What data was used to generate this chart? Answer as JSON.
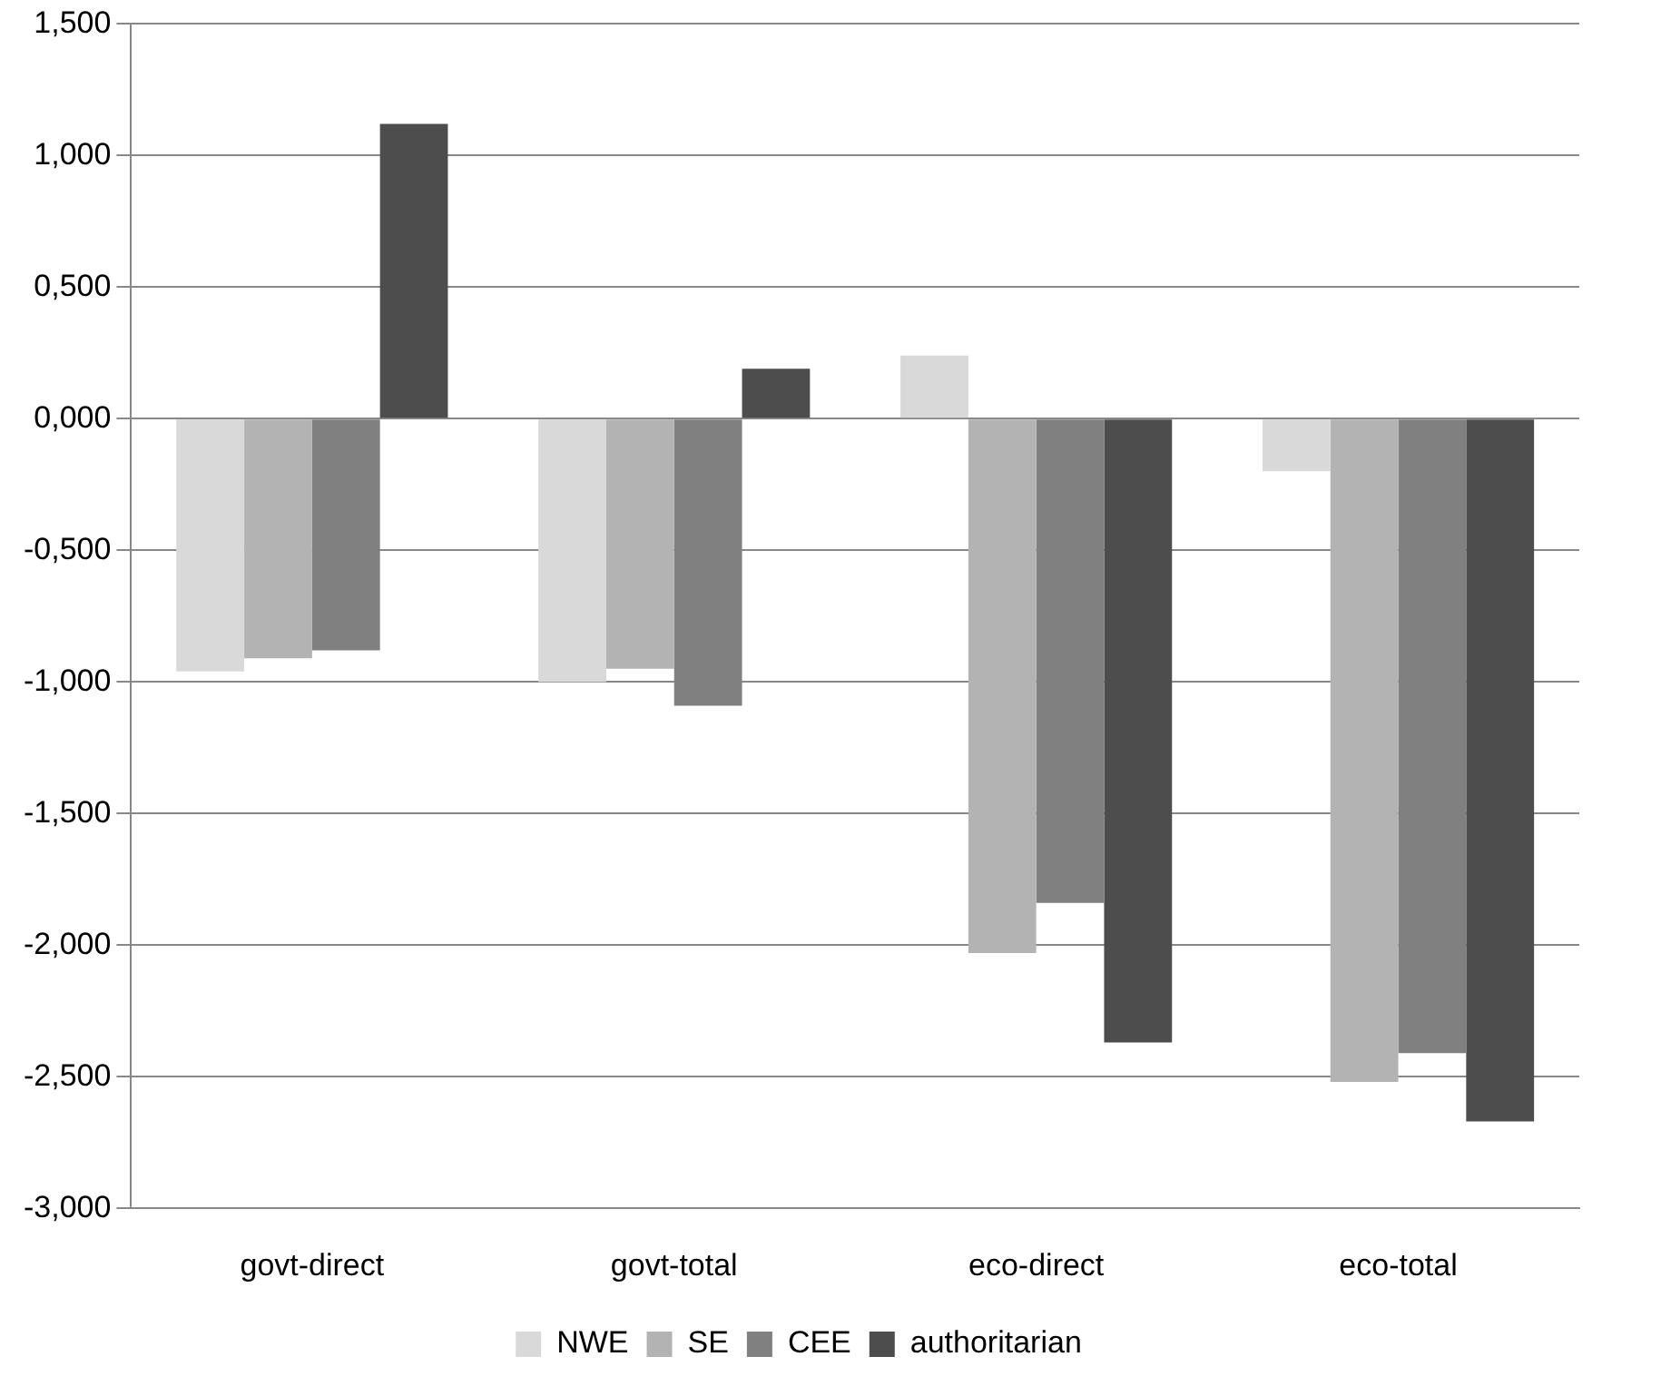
{
  "chart_data": {
    "type": "bar",
    "categories": [
      "govt-direct",
      "govt-total",
      "eco-direct",
      "eco-total"
    ],
    "series": [
      {
        "name": "NWE",
        "color": "#d9d9d9",
        "values": [
          -0.96,
          -1.0,
          0.24,
          -0.2
        ]
      },
      {
        "name": "SE",
        "color": "#b3b3b3",
        "values": [
          -0.91,
          -0.95,
          -2.03,
          -2.52
        ]
      },
      {
        "name": "CEE",
        "color": "#808080",
        "values": [
          -0.88,
          -1.09,
          -1.84,
          -2.41
        ]
      },
      {
        "name": "authoritarian",
        "color": "#4d4d4d",
        "values": [
          1.12,
          0.19,
          -2.37,
          -2.67
        ]
      }
    ],
    "ylim": [
      -3,
      1.5
    ],
    "yticks": [
      {
        "value": -3,
        "label": "-3,000"
      },
      {
        "value": -2.5,
        "label": "-2,500"
      },
      {
        "value": -2,
        "label": "-2,000"
      },
      {
        "value": -1.5,
        "label": "-1,500"
      },
      {
        "value": -1,
        "label": "-1,000"
      },
      {
        "value": -0.5,
        "label": "-0,500"
      },
      {
        "value": 0,
        "label": "0,000"
      },
      {
        "value": 0.5,
        "label": "0,500"
      },
      {
        "value": 1,
        "label": "1,000"
      },
      {
        "value": 1.5,
        "label": "1,500"
      }
    ],
    "grid": "y",
    "legend": "bottom"
  }
}
